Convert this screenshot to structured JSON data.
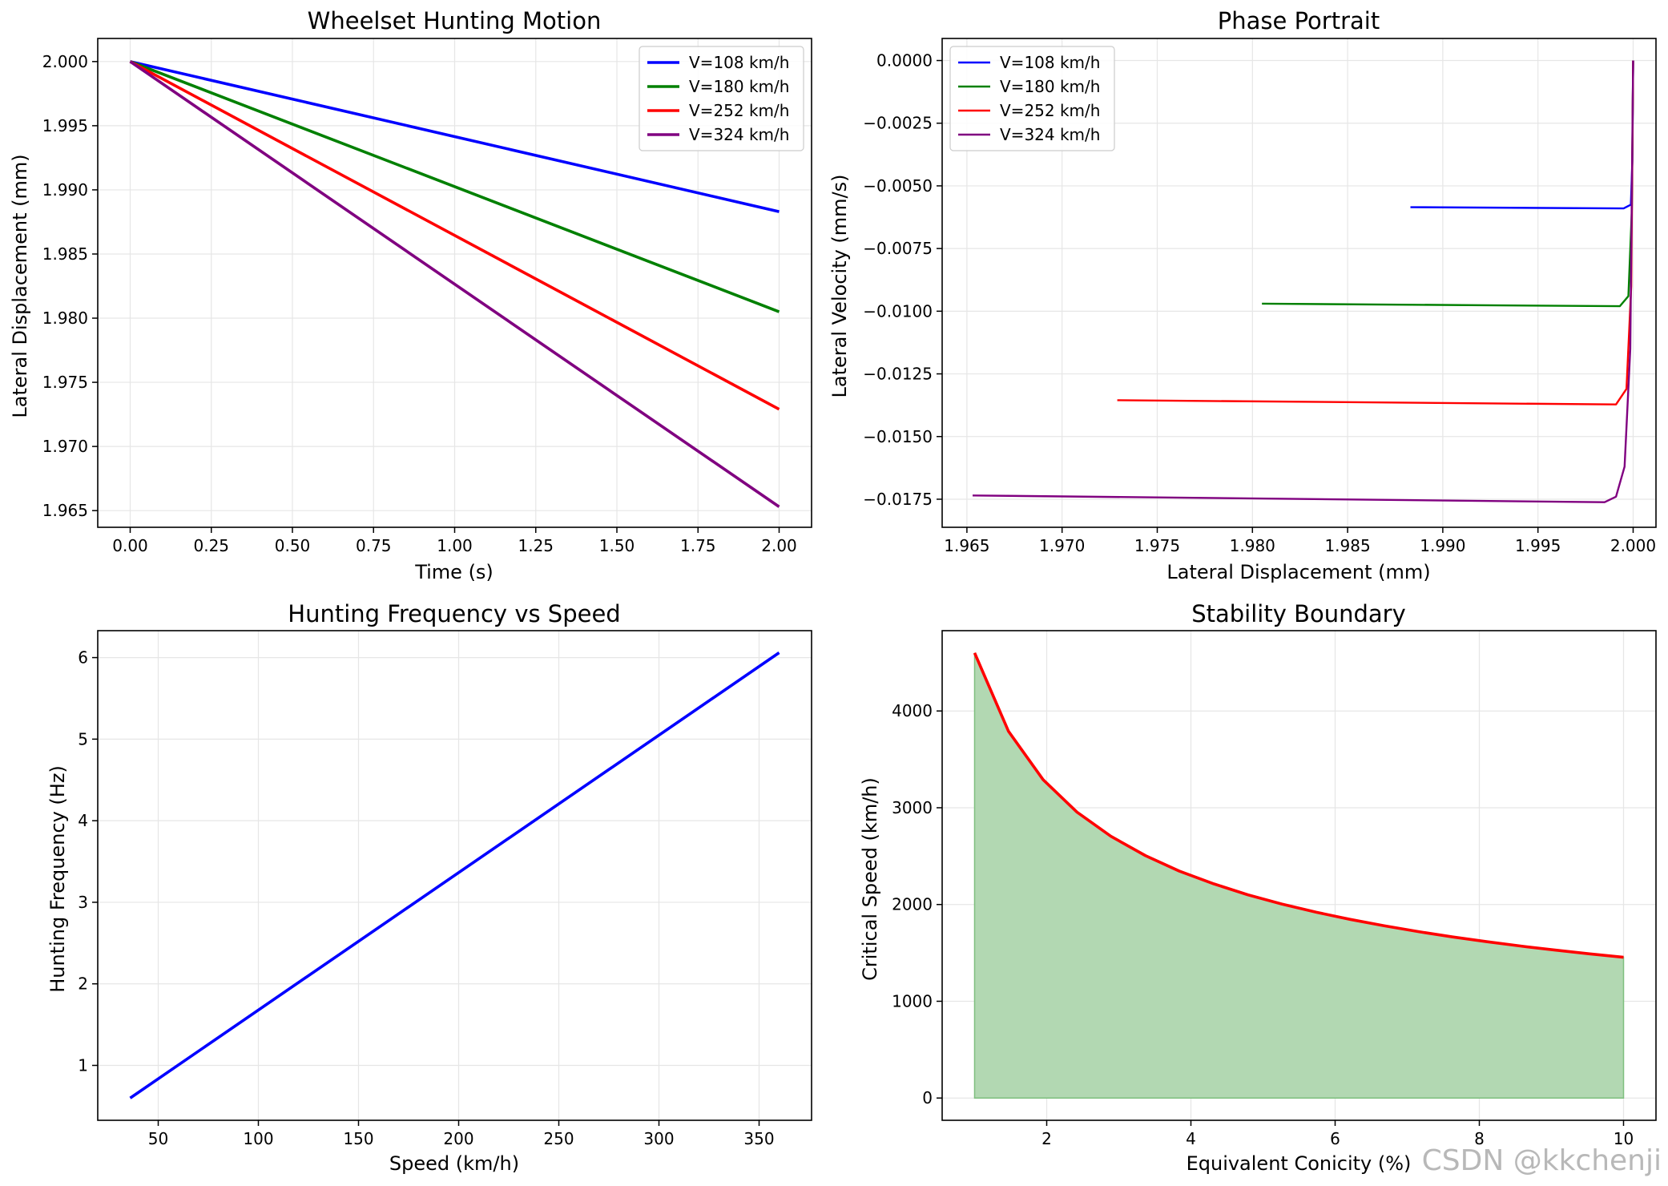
{
  "watermark": "CSDN @kkchenji",
  "chart_data": [
    {
      "type": "line",
      "title": "Wheelset Hunting Motion",
      "xlabel": "Time (s)",
      "ylabel": "Lateral Displacement (mm)",
      "xlim": [
        -0.1,
        2.1
      ],
      "ylim": [
        1.9637,
        2.0018
      ],
      "xticks": [
        0.0,
        0.25,
        0.5,
        0.75,
        1.0,
        1.25,
        1.5,
        1.75,
        2.0
      ],
      "xtick_labels": [
        "0.00",
        "0.25",
        "0.50",
        "0.75",
        "1.00",
        "1.25",
        "1.50",
        "1.75",
        "2.00"
      ],
      "yticks": [
        1.965,
        1.97,
        1.975,
        1.98,
        1.985,
        1.99,
        1.995,
        2.0
      ],
      "ytick_labels": [
        "1.965",
        "1.970",
        "1.975",
        "1.980",
        "1.985",
        "1.990",
        "1.995",
        "2.000"
      ],
      "grid": true,
      "legend": "top-right",
      "series": [
        {
          "name": "V=108 km/h",
          "color": "#0000ff",
          "x": [
            0.0,
            2.0
          ],
          "y": [
            2.0,
            1.9883
          ]
        },
        {
          "name": "V=180 km/h",
          "color": "#008000",
          "x": [
            0.0,
            2.0
          ],
          "y": [
            2.0,
            1.9805
          ]
        },
        {
          "name": "V=252 km/h",
          "color": "#ff0000",
          "x": [
            0.0,
            2.0
          ],
          "y": [
            2.0,
            1.9729
          ]
        },
        {
          "name": "V=324 km/h",
          "color": "#800080",
          "x": [
            0.0,
            2.0
          ],
          "y": [
            2.0,
            1.9653
          ]
        }
      ]
    },
    {
      "type": "line",
      "title": "Phase Portrait",
      "xlabel": "Lateral Displacement (mm)",
      "ylabel": "Lateral Velocity (mm/s)",
      "xlim": [
        1.9637,
        2.0012
      ],
      "ylim": [
        -0.01862,
        0.00088
      ],
      "xticks": [
        1.965,
        1.97,
        1.975,
        1.98,
        1.985,
        1.99,
        1.995,
        2.0
      ],
      "xtick_labels": [
        "1.965",
        "1.970",
        "1.975",
        "1.980",
        "1.985",
        "1.990",
        "1.995",
        "2.000"
      ],
      "yticks": [
        -0.0175,
        -0.015,
        -0.0125,
        -0.01,
        -0.0075,
        -0.005,
        -0.0025,
        0.0
      ],
      "ytick_labels": [
        "−0.0175",
        "−0.0150",
        "−0.0125",
        "−0.0100",
        "−0.0075",
        "−0.0050",
        "−0.0025",
        "0.0000"
      ],
      "grid": true,
      "legend": "top-left",
      "series": [
        {
          "name": "V=108 km/h",
          "color": "#0000ff",
          "x": [
            1.9883,
            1.9995,
            1.99988,
            1.99996,
            2.0
          ],
          "y": [
            -0.00585,
            -0.0059,
            -0.00575,
            -0.004,
            0.0
          ]
        },
        {
          "name": "V=180 km/h",
          "color": "#008000",
          "x": [
            1.9805,
            1.9993,
            1.99975,
            1.99993,
            2.0
          ],
          "y": [
            -0.0097,
            -0.0098,
            -0.0094,
            -0.006,
            0.0
          ]
        },
        {
          "name": "V=252 km/h",
          "color": "#ff0000",
          "x": [
            1.9729,
            1.9991,
            1.99965,
            1.9999,
            2.0
          ],
          "y": [
            -0.01355,
            -0.01372,
            -0.0131,
            -0.009,
            0.0
          ]
        },
        {
          "name": "V=324 km/h",
          "color": "#800080",
          "x": [
            1.9653,
            1.9985,
            1.9991,
            1.99955,
            1.99985,
            2.0
          ],
          "y": [
            -0.01735,
            -0.01762,
            -0.0174,
            -0.0162,
            -0.0115,
            0.0
          ]
        }
      ]
    },
    {
      "type": "line",
      "title": "Hunting Frequency vs Speed",
      "xlabel": "Speed (km/h)",
      "ylabel": "Hunting Frequency (Hz)",
      "xlim": [
        19.8,
        376.2
      ],
      "ylim": [
        0.327,
        6.33
      ],
      "xticks": [
        50,
        100,
        150,
        200,
        250,
        300,
        350
      ],
      "xtick_labels": [
        "50",
        "100",
        "150",
        "200",
        "250",
        "300",
        "350"
      ],
      "yticks": [
        1,
        2,
        3,
        4,
        5,
        6
      ],
      "ytick_labels": [
        "1",
        "2",
        "3",
        "4",
        "5",
        "6"
      ],
      "grid": true,
      "series": [
        {
          "color": "#0000ff",
          "x": [
            36,
            360
          ],
          "y": [
            0.6,
            6.06
          ]
        }
      ]
    },
    {
      "type": "area",
      "title": "Stability Boundary",
      "xlabel": "Equivalent Conicity (%)",
      "ylabel": "Critical Speed (km/h)",
      "xlim": [
        0.55,
        10.45
      ],
      "ylim": [
        -230,
        4830
      ],
      "xticks": [
        2,
        4,
        6,
        8,
        10
      ],
      "xtick_labels": [
        "2",
        "4",
        "6",
        "8",
        "10"
      ],
      "yticks": [
        0,
        1000,
        2000,
        3000,
        4000
      ],
      "ytick_labels": [
        "0",
        "1000",
        "2000",
        "3000",
        "4000"
      ],
      "grid": true,
      "fill_color": "#b2d8b2",
      "line_color": "#ff0000",
      "series": [
        {
          "x": [
            1.0,
            1.47,
            1.95,
            2.42,
            2.89,
            3.37,
            3.84,
            4.32,
            4.79,
            5.26,
            5.74,
            6.21,
            6.68,
            7.16,
            7.63,
            8.11,
            8.58,
            9.05,
            9.53,
            10.0
          ],
          "y": [
            4600,
            3790,
            3290,
            2955,
            2705,
            2505,
            2345,
            2213,
            2100,
            2005,
            1920,
            1846,
            1780,
            1719,
            1665,
            1615,
            1570,
            1529,
            1490,
            1455
          ]
        }
      ]
    }
  ]
}
